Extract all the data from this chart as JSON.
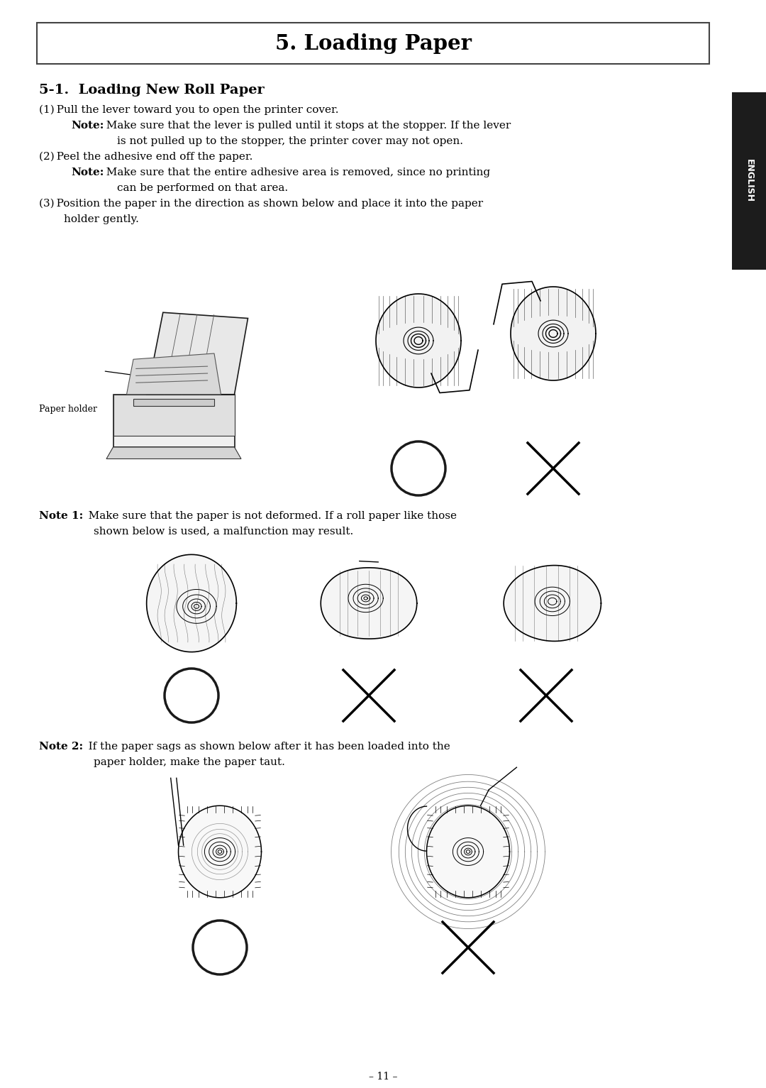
{
  "title": "5. Loading Paper",
  "section_title": "5-1.  Loading New Roll Paper",
  "step1": "(1) Pull the lever toward you to open the printer cover.",
  "note1a_bold": "Note:",
  "note1a_text": "  Make sure that the lever is pulled until it stops at the stopper. If the lever",
  "note1a_cont": "is not pulled up to the stopper, the printer cover may not open.",
  "step2": "(2) Peel the adhesive end off the paper.",
  "note1b_bold": "Note:",
  "note1b_text": "  Make sure that the entire adhesive area is removed, since no printing",
  "note1b_cont": "can be performed on that area.",
  "step3a": "(3) Position the paper in the direction as shown below and place it into the paper",
  "step3b": "holder gently.",
  "paper_holder_label": "Paper holder",
  "note_1_bold": "Note 1:",
  "note_1_text": "   Make sure that the paper is not deformed. If a roll paper like those",
  "note_1_cont": "shown below is used, a malfunction may result.",
  "note_2_bold": "Note 2:",
  "note_2_text": "   If the paper sags as shown below after it has been loaded into the",
  "note_2_cont": "paper holder, make the paper taut.",
  "page_number": "– 11 –",
  "english_tab": "ENGLISH",
  "bg": "#ffffff",
  "fg": "#000000",
  "tab_bg": "#1c1c1c",
  "tab_fg": "#ffffff",
  "body_fontsize": 11,
  "title_fontsize": 21
}
